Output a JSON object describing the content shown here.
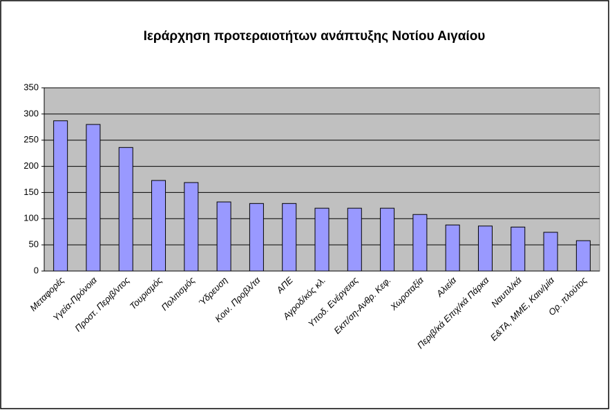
{
  "chart_data": {
    "type": "bar",
    "title": "Ιεράρχηση προτεραιοτήτων ανάπτυξης Νοτίου Αιγαίου",
    "categories": [
      "Μεταφορές",
      "Υγεία-Πρόνοια",
      "Προστ. Περιβ/ντος",
      "Τουρισμός",
      "Πολιτισμός",
      "Ύδρευση",
      "Κοιν. Προβλ/τα",
      "ΑΠΕ",
      "Αγροδ/κός κλ.",
      "Υποδ. Ενέργειας",
      "Εκπ/ση-Ανθρ. Κεφ.",
      "Χωροταξία",
      "Αλιεία",
      "Περιβ/κά Επιχ/κά Πάρκα",
      "Ναυτιλ/κά",
      "Ε&ΤΑ, ΜΜΕ, Καιν/μία",
      "Ορ. πλούτος"
    ],
    "values": [
      287,
      280,
      236,
      173,
      169,
      132,
      129,
      129,
      120,
      120,
      120,
      108,
      88,
      86,
      84,
      74,
      58
    ],
    "color": "#9999ff",
    "ylim": [
      0,
      350
    ],
    "yticks": [
      0,
      50,
      100,
      150,
      200,
      250,
      300,
      350
    ],
    "grid": true
  }
}
